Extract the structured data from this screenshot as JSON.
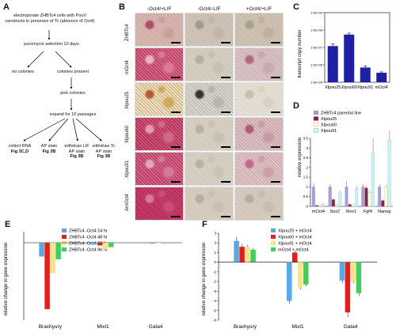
{
  "panels": {
    "A": "A",
    "B": "B",
    "C": "C",
    "D": "D",
    "E": "E",
    "F": "F"
  },
  "flow": {
    "n1": "electroporate ZHBTc4 cells with PouV constructs in presence of Tc (absence of Oct4)",
    "n2": "puromycin selection 10 days",
    "n3": "no colonies",
    "n4": "colonies present",
    "n5": "pick colonies",
    "n6": "expand for 10 passages",
    "n7": "collect RNA",
    "n7b": "Fig 3C,D",
    "n8": "AP stain",
    "n8b": "Fig 3B",
    "n9": "withdraw LIF",
    "n9a": "AP stain",
    "n9b": "Fig 3B",
    "n10": "withdraw Tc",
    "n10a": "AP stain",
    "n10b": "Fig 3B"
  },
  "micro": {
    "cols": [
      "-Oct4/+LIF",
      "-Oct4/-LIF",
      "+Oct4/+LIF"
    ],
    "rows": [
      "ZHBTc4",
      "mOct4",
      "Xlpou25",
      "Xlpou60",
      "Xlpou91",
      "AmOct4"
    ]
  },
  "colors": {
    "blue": "#1f1fa8",
    "lavender": "#a99bdc",
    "maroon": "#8a1f4a",
    "ivory": "#fffde0",
    "cyan": "#c8f2f5",
    "e_blue": "#5aa9e6",
    "e_red": "#e0201d",
    "e_yellow": "#f7e38a",
    "e_green": "#3fcf5a"
  },
  "chart_data": [
    {
      "panel": "C",
      "type": "bar",
      "ylabel": "transcript copy number",
      "yscale": "log",
      "yticks": [
        "1.0E+05",
        "1.0E+06",
        "1.0E+07",
        "1.0E+08",
        "1.0E+09"
      ],
      "ylim": [
        100000,
        1000000000
      ],
      "categories": [
        "Xlpou25",
        "Xlpou60",
        "Xlpou91",
        "mOct4"
      ],
      "values": [
        12000000,
        55000000,
        700000,
        350000
      ],
      "errors": [
        0.12,
        0.08,
        0.1,
        0.05
      ]
    },
    {
      "panel": "D",
      "type": "bar",
      "ylabel": "relative expression",
      "ylim": [
        0,
        3.5
      ],
      "yticks": [
        "0",
        "0.5",
        "1",
        "1.5",
        "2",
        "2.5",
        "3",
        "3.5"
      ],
      "categories": [
        "mOct4",
        "Sox2",
        "Rex1",
        "Fgf4",
        "Nanog"
      ],
      "series": [
        {
          "name": "ZHBTc4 parental line",
          "values": [
            1,
            1,
            1,
            1,
            1
          ],
          "errors": [
            0.2,
            0.15,
            0.3,
            0.15,
            0.15
          ]
        },
        {
          "name": "Xlpou25",
          "values": [
            0.05,
            0.35,
            0.1,
            0.95,
            0.3
          ],
          "errors": [
            0.02,
            0.05,
            0.03,
            0.1,
            0.05
          ]
        },
        {
          "name": "Xlpou60",
          "values": [
            0.05,
            0.1,
            0.1,
            0.7,
            1.0
          ],
          "errors": [
            0.02,
            0.03,
            0.03,
            0.1,
            0.1
          ]
        },
        {
          "name": "Xlpou91",
          "values": [
            0.1,
            0.7,
            0.9,
            2.8,
            3.4
          ],
          "errors": [
            0.05,
            0.1,
            0.1,
            0.7,
            0.5
          ]
        }
      ]
    },
    {
      "panel": "E",
      "type": "bar",
      "ylabel": "relative change in gene expression",
      "ylim": [
        -140,
        20
      ],
      "categories": [
        "Brachyury",
        "Mixl1",
        "Gata4"
      ],
      "series": [
        {
          "name": "ZHBTc4 -Oct4 24 hr",
          "values": [
            -25,
            -3,
            -1
          ]
        },
        {
          "name": "ZHBTc4 -Oct4 48 hr",
          "values": [
            -120,
            -5,
            -1
          ]
        },
        {
          "name": "ZHBTc4 -Oct4 72 hr",
          "values": [
            -55,
            -12,
            -1
          ]
        },
        {
          "name": "ZHBTc4 -Oct4 96 hr",
          "values": [
            -30,
            -8,
            -1
          ]
        }
      ]
    },
    {
      "panel": "F",
      "type": "bar",
      "ylabel": "relative change in gene expression",
      "ylim": [
        -6,
        3
      ],
      "yticks": [
        "3",
        "2",
        "1",
        "0",
        "-1",
        "-2",
        "-3",
        "-4",
        "-5",
        "-6"
      ],
      "categories": [
        "Brachyury",
        "Mixl1",
        "Gata4"
      ],
      "series": [
        {
          "name": "Xlpou25 + mOct4",
          "values": [
            2.2,
            -4.0,
            -1.9
          ],
          "errors": [
            0.4,
            0.3,
            0.3
          ]
        },
        {
          "name": "Xlpou60 + mOct4",
          "values": [
            1.6,
            1.0,
            -5.2
          ],
          "errors": [
            0.3,
            0.2,
            0.5
          ]
        },
        {
          "name": "Xlpou91 + mOct4",
          "values": [
            1.6,
            -2.6,
            -2.0
          ],
          "errors": [
            0.2,
            0.2,
            0.2
          ]
        },
        {
          "name": "mOct4 + mOct4",
          "values": [
            1.3,
            -2.3,
            -3.2
          ],
          "errors": [
            0.2,
            0.2,
            0.3
          ]
        }
      ]
    }
  ]
}
